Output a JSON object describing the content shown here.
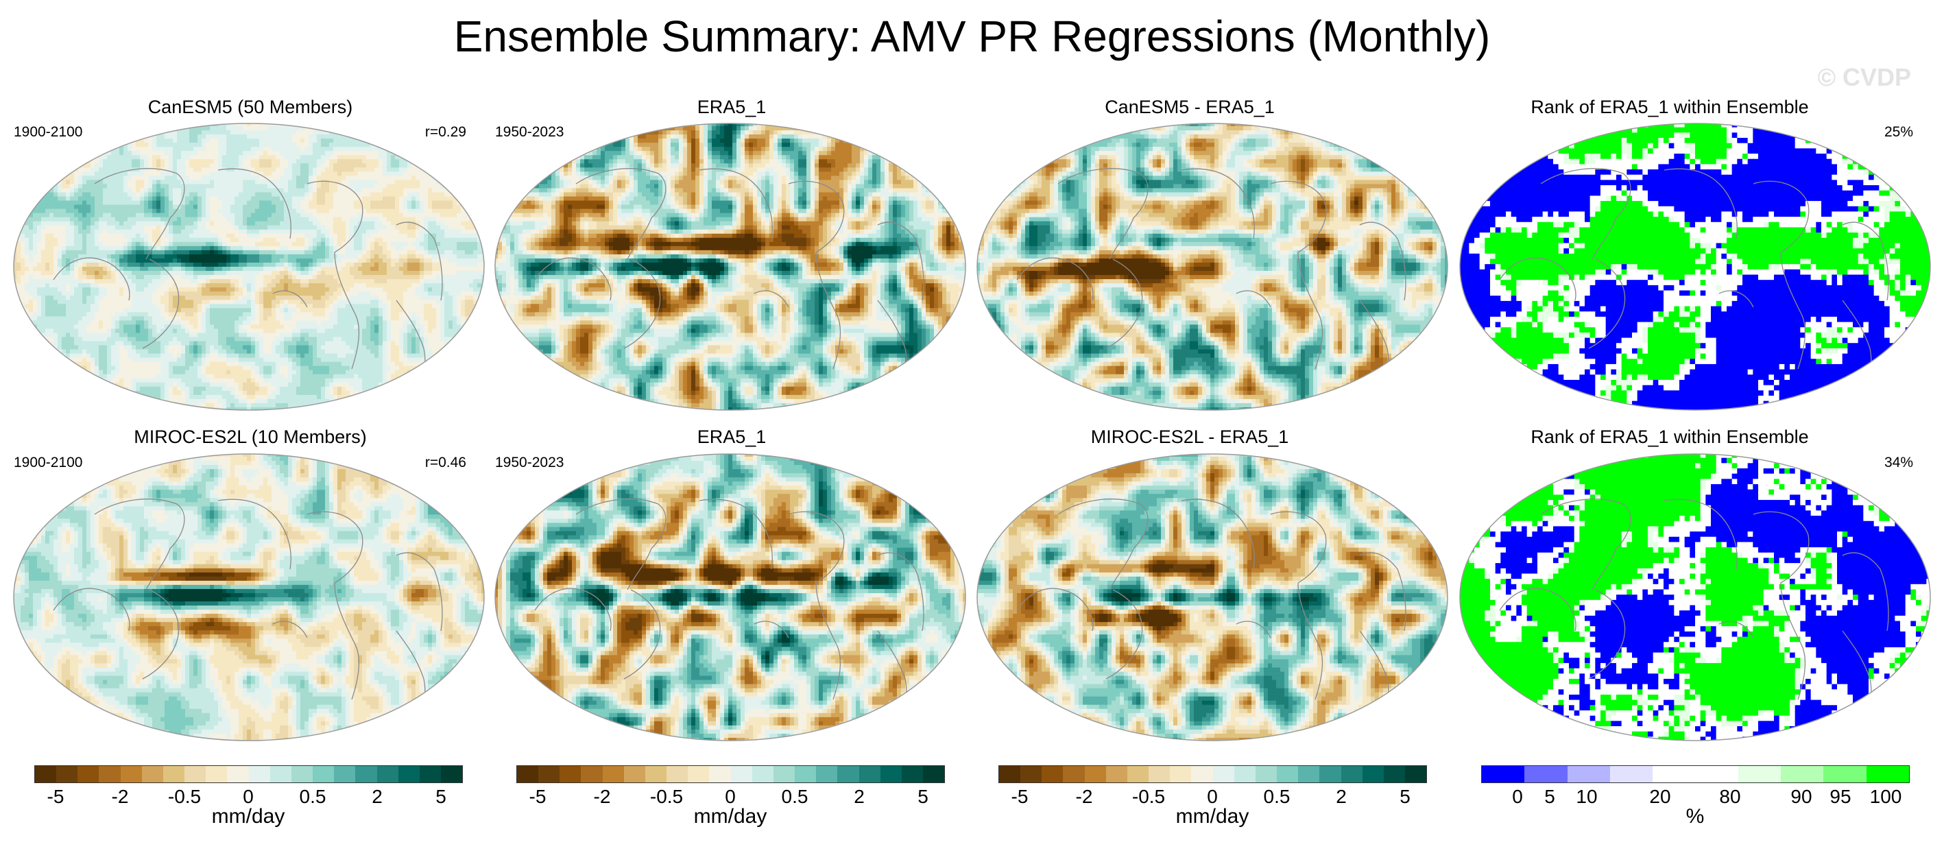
{
  "figure": {
    "title": "Ensemble Summary: AMV PR Regressions (Monthly)",
    "watermark": "© CVDP"
  },
  "rows": [
    {
      "panels": [
        {
          "title": "CanESM5 (50 Members)",
          "left": "1900-2100",
          "right": "r=0.29",
          "kind": "model"
        },
        {
          "title": "ERA5_1",
          "left": "1950-2023",
          "right": "",
          "kind": "obs"
        },
        {
          "title": "CanESM5 - ERA5_1",
          "left": "",
          "right": "",
          "kind": "diff"
        },
        {
          "title": "Rank of ERA5_1 within Ensemble",
          "left": "",
          "right": "25%",
          "kind": "rank"
        }
      ]
    },
    {
      "panels": [
        {
          "title": "MIROC-ES2L (10 Members)",
          "left": "1900-2100",
          "right": "r=0.46",
          "kind": "model"
        },
        {
          "title": "ERA5_1",
          "left": "1950-2023",
          "right": "",
          "kind": "obs"
        },
        {
          "title": "MIROC-ES2L - ERA5_1",
          "left": "",
          "right": "",
          "kind": "diff"
        },
        {
          "title": "Rank of ERA5_1 within Ensemble",
          "left": "",
          "right": "34%",
          "kind": "rank"
        }
      ]
    }
  ],
  "colorbars": [
    {
      "unit": "mm/day",
      "ticks": [
        "-5",
        "-2",
        "-0.5",
        "0",
        "0.5",
        "2",
        "5"
      ]
    },
    {
      "unit": "mm/day",
      "ticks": [
        "-5",
        "-2",
        "-0.5",
        "0",
        "0.5",
        "2",
        "5"
      ]
    },
    {
      "unit": "mm/day",
      "ticks": [
        "-5",
        "-2",
        "-0.5",
        "0",
        "0.5",
        "2",
        "5"
      ]
    },
    {
      "unit": "%",
      "ticks": [
        "0",
        "5",
        "10",
        "20",
        "80",
        "90",
        "95",
        "100"
      ]
    }
  ],
  "colors": {
    "brbg": [
      "#543005",
      "#6b3f0a",
      "#8c510a",
      "#a86b1f",
      "#bf812d",
      "#d2a35a",
      "#dfc27d",
      "#ecd9ae",
      "#f6e8c3",
      "#f5f1e3",
      "#e3f2ef",
      "#c7eae5",
      "#a6dbd0",
      "#80cdc1",
      "#5ab4ab",
      "#35978f",
      "#1e7f77",
      "#01665e",
      "#004f45",
      "#003c30"
    ],
    "rank": [
      "#0000ff",
      "#6a6aff",
      "#b4b4ff",
      "#e2e2ff",
      "#ffffff",
      "#ffffff",
      "#e4ffe4",
      "#b4ffb4",
      "#7aff7a",
      "#00ff00"
    ],
    "map_background": "#f5f1e3",
    "coastline": "#8a8a8a"
  }
}
